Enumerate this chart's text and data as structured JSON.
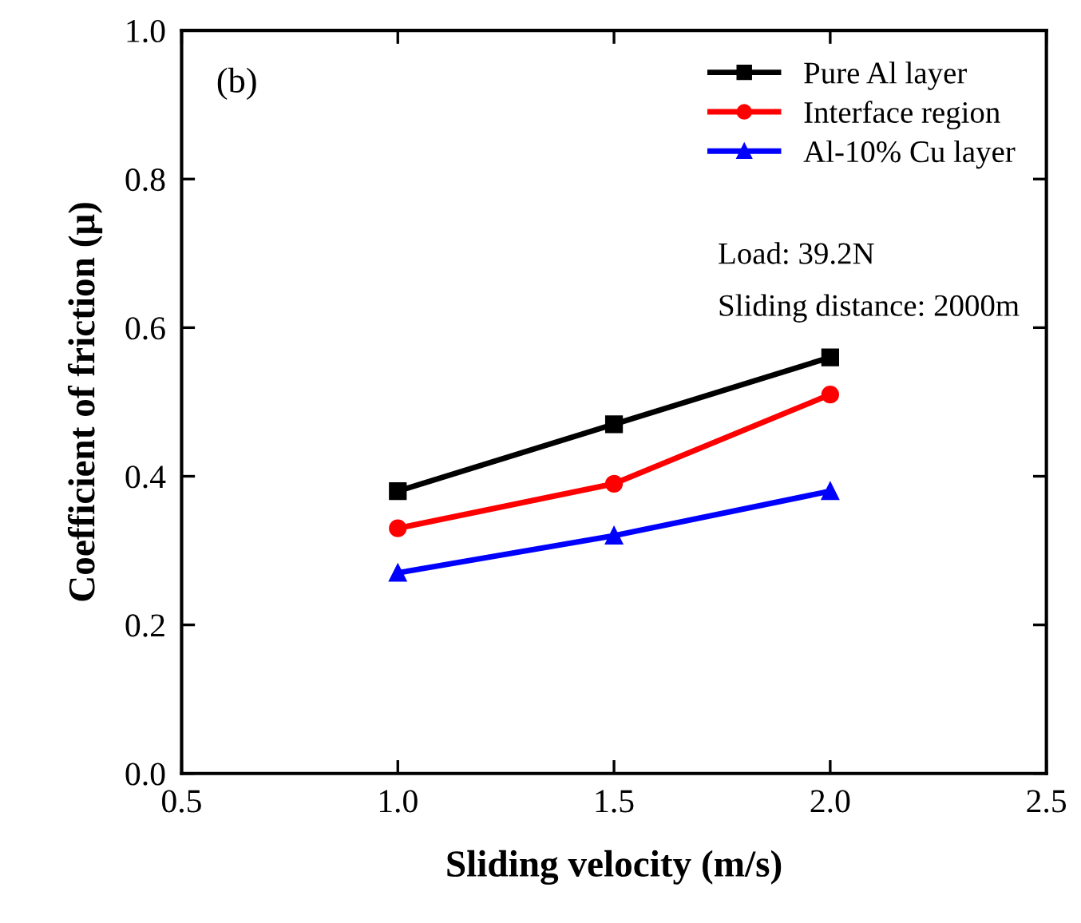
{
  "chart_data": {
    "type": "line",
    "xlabel": "Sliding velocity (m/s)",
    "ylabel": "Coefficient of friction (μ)",
    "x": [
      1.0,
      1.5,
      2.0
    ],
    "series": [
      {
        "name": "Pure Al layer",
        "color": "#000000",
        "marker": "square",
        "values": [
          0.38,
          0.47,
          0.56
        ]
      },
      {
        "name": "Interface region",
        "color": "#ff0000",
        "marker": "circle",
        "values": [
          0.33,
          0.39,
          0.51
        ]
      },
      {
        "name": "Al-10% Cu layer",
        "color": "#0000ff",
        "marker": "triangle",
        "values": [
          0.27,
          0.32,
          0.38
        ]
      }
    ],
    "xlim": [
      0.5,
      2.5
    ],
    "xticks": [
      0.5,
      {
        "value": 1.0,
        "label": "1.0"
      },
      1.5,
      {
        "value": 2.0,
        "label": "2.0"
      },
      2.5
    ],
    "ylim": [
      0.0,
      1.0
    ],
    "yticks": [
      {
        "value": 0.0,
        "label": "0.0"
      },
      0.2,
      0.4,
      0.6,
      0.8,
      {
        "value": 1.0,
        "label": "1.0"
      }
    ],
    "annotations": [
      "(b)",
      "Load: 39.2N",
      "Sliding distance: 2000m"
    ],
    "legend": "top right",
    "grid": false
  }
}
